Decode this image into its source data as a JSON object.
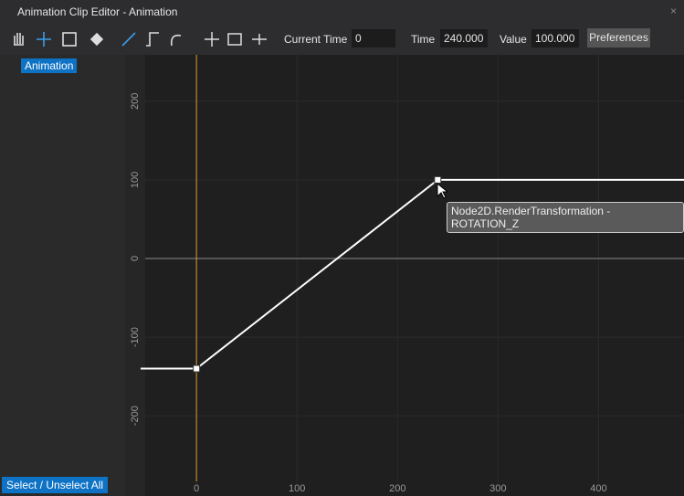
{
  "window": {
    "title": "Animation Clip Editor - Animation",
    "close": "×"
  },
  "toolbar": {
    "current_time_label": "Current Time",
    "current_time": 0,
    "time_label": "Time",
    "time": "240.000",
    "value_label": "Value",
    "value": "100.000",
    "preferences": "Preferences"
  },
  "tracks": [
    "Animation"
  ],
  "select_all": "Select / Unselect All",
  "graph": {
    "type": "line",
    "x": [
      0,
      240
    ],
    "values": [
      -140,
      100
    ],
    "color": "#ffffff",
    "xlim": [
      -71,
      485
    ],
    "ylim": [
      -302,
      259
    ],
    "xticks": [
      0,
      100,
      200,
      300,
      400
    ],
    "yticks": [
      200,
      100,
      0,
      -100,
      -200
    ],
    "tooltip": "Node2D.RenderTransformation - ROTATION_Z"
  }
}
